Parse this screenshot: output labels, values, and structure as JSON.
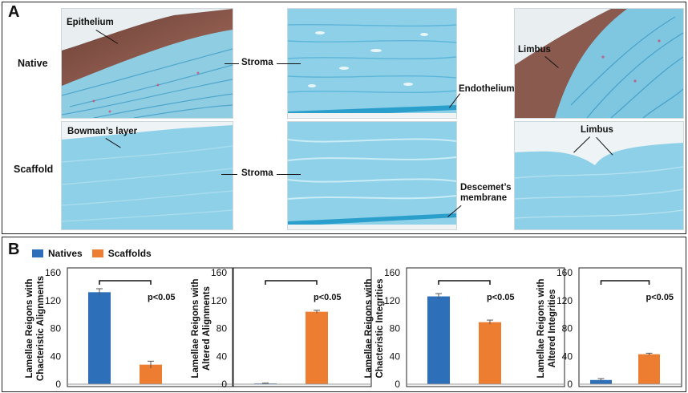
{
  "panel_a": {
    "letter": "A",
    "rows": {
      "native": "Native",
      "scaffold": "Scaffold"
    },
    "labels": {
      "epithelium": "Epithelium",
      "stroma_native": "Stroma",
      "endothelium": "Endothelium",
      "limbus_native": "Limbus",
      "bowmans": "Bowman’s layer",
      "stroma_scaffold": "Stroma",
      "descemets": "Descemet’s\nmembrane",
      "limbus_scaffold": "Limbus"
    },
    "colors": {
      "stain_blue": "#6ec3df",
      "epithelium_brown": "#8b5a4f"
    }
  },
  "panel_b": {
    "letter": "B",
    "legend": [
      {
        "name": "Natives",
        "color": "#2e6fba"
      },
      {
        "name": "Scaffolds",
        "color": "#ed7d31"
      }
    ]
  },
  "chart_data": [
    {
      "type": "bar",
      "categories": [
        "Natives",
        "Scaffolds"
      ],
      "values": [
        132,
        28
      ],
      "errors": [
        5,
        5
      ],
      "ylabel": "Lamellae Reigons with\nChacteristic Alignments",
      "ylim": [
        0,
        160
      ],
      "yticks": [
        0,
        40,
        80,
        120,
        160
      ],
      "annotation": "p<0.05"
    },
    {
      "type": "bar",
      "categories": [
        "Natives",
        "Scaffolds"
      ],
      "values": [
        1,
        104
      ],
      "errors": [
        0.5,
        2
      ],
      "ylabel": "Lamellae Reigons with\nAltered Alignments",
      "ylim": [
        0,
        160
      ],
      "yticks": [
        0,
        40,
        80,
        120,
        160
      ],
      "annotation": "p<0.05"
    },
    {
      "type": "bar",
      "categories": [
        "Natives",
        "Scaffolds"
      ],
      "values": [
        126,
        89
      ],
      "errors": [
        4,
        3
      ],
      "ylabel": "Lamellae Reigons with\nChacteristic Integrities",
      "ylim": [
        0,
        160
      ],
      "yticks": [
        0,
        40,
        80,
        120,
        160
      ],
      "annotation": "p<0.05"
    },
    {
      "type": "bar",
      "categories": [
        "Natives",
        "Scaffolds"
      ],
      "values": [
        6,
        43
      ],
      "errors": [
        2,
        1.5
      ],
      "ylabel": "Lamellae Reigons with\nAltered Integrities",
      "ylim": [
        0,
        160
      ],
      "yticks": [
        0,
        40,
        80,
        120,
        160
      ],
      "annotation": "p<0.05"
    }
  ]
}
